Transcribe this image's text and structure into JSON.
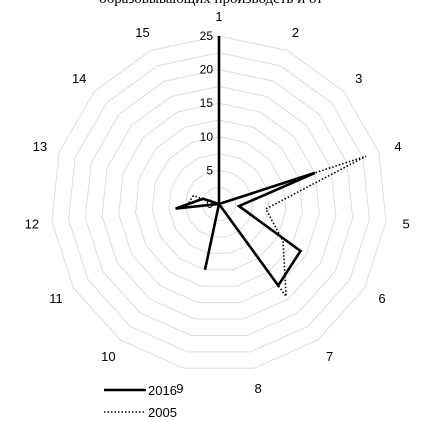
{
  "header": {
    "text": "образовывающих производств и от"
  },
  "chart_data": {
    "type": "radar",
    "title": "",
    "categories": [
      "1",
      "2",
      "3",
      "4",
      "5",
      "6",
      "7",
      "8",
      "9",
      "10",
      "11",
      "12",
      "13",
      "14",
      "15"
    ],
    "rlim": [
      0,
      25
    ],
    "r_ticks": [
      0,
      5,
      10,
      15,
      20,
      25
    ],
    "r_tick_labels": [
      "0",
      "5",
      "10",
      "15",
      "20",
      "25"
    ],
    "grid": true,
    "legend_placement": "bottom-left",
    "series": [
      {
        "name": "2016",
        "style": "solid",
        "color": "#000000",
        "values": [
          25,
          0,
          0,
          15,
          3,
          14,
          15,
          0,
          10,
          0,
          0,
          6.5,
          2.5,
          0,
          0
        ]
      },
      {
        "name": "2005",
        "style": "dotted",
        "color": "#000000",
        "values": [
          0,
          0,
          0,
          23,
          7,
          11,
          17,
          0,
          10,
          0,
          0,
          5,
          4,
          0,
          0
        ]
      }
    ]
  }
}
